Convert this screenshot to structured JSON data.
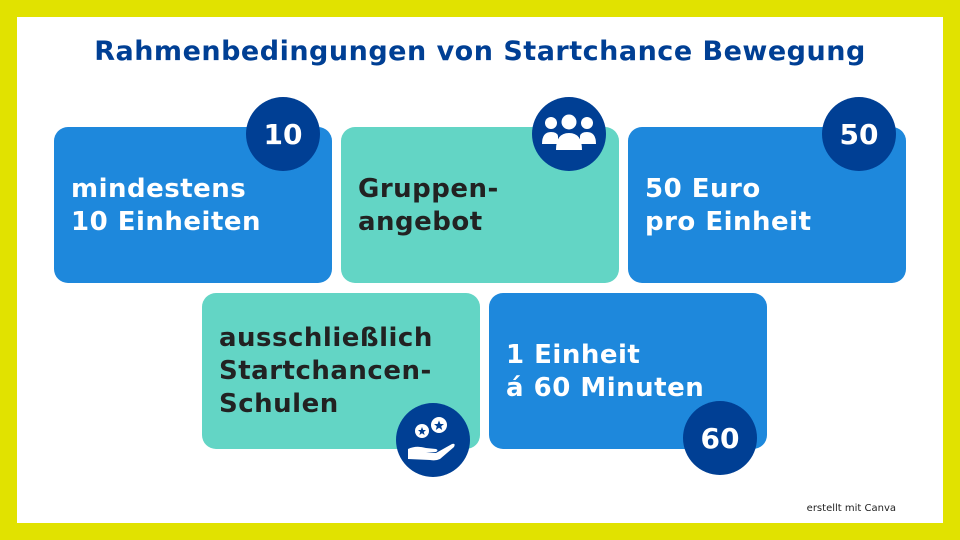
{
  "title": "Rahmenbedingungen von Startchance Bewegung",
  "cards": [
    {
      "text": "mindestens\n10 Einheiten",
      "badge": "10"
    },
    {
      "text": "Gruppen-\nangebot",
      "badge_icon": "group-icon"
    },
    {
      "text": "50 Euro\npro Einheit",
      "badge": "50"
    },
    {
      "text": "ausschließlich\nStartchancen-\nSchulen",
      "badge_icon": "hand-stars-icon"
    },
    {
      "text": "1 Einheit\ná 60 Minuten",
      "badge": "60"
    }
  ],
  "footer": "erstellt mit Canva",
  "colors": {
    "border": "#e1e200",
    "blue": "#1e88dc",
    "teal": "#63d5c5",
    "navy": "#003f94"
  }
}
